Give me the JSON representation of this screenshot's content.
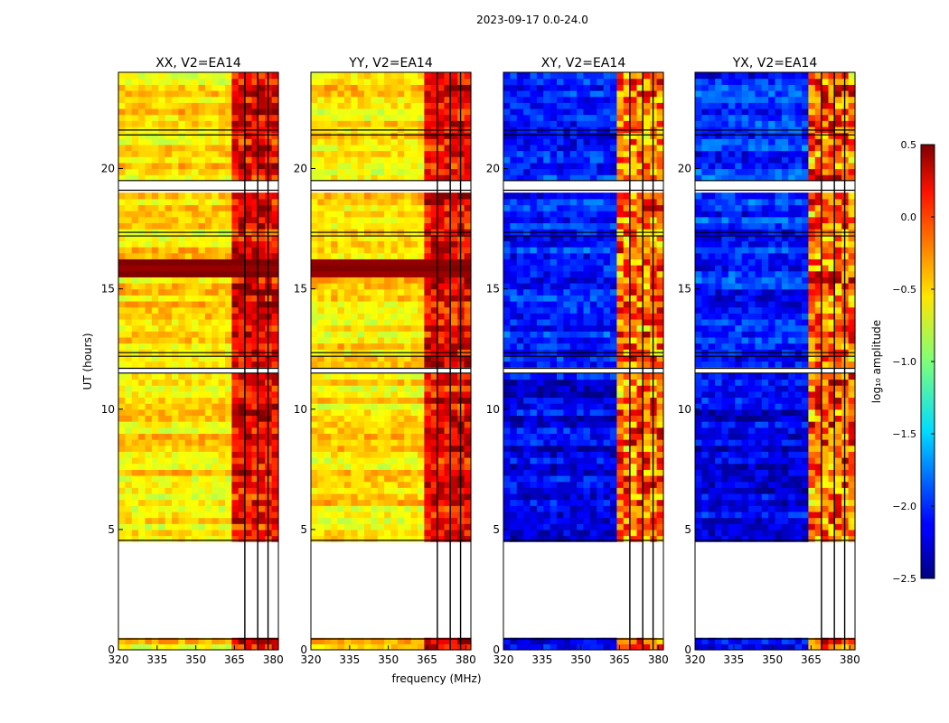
{
  "figure_title": "2023-09-17 0.0-24.0",
  "chart_data": [
    {
      "type": "heatmap",
      "title": "XX, V2=EA14",
      "pol": "XX",
      "xlabel": "",
      "ylabel": "UT (hours)",
      "xlim": [
        320,
        382
      ],
      "ylim": [
        0,
        24
      ],
      "xticks": [
        "320",
        "335",
        "350",
        "365",
        "380"
      ],
      "yticks": [
        "0",
        "5",
        "10",
        "15",
        "20"
      ]
    },
    {
      "type": "heatmap",
      "title": "YY, V2=EA14",
      "pol": "YY",
      "xlabel": "frequency (MHz)",
      "ylabel": "",
      "xlim": [
        320,
        382
      ],
      "ylim": [
        0,
        24
      ],
      "xticks": [
        "320",
        "335",
        "350",
        "365",
        "380"
      ],
      "yticks": [
        "0",
        "5",
        "10",
        "15",
        "20"
      ]
    },
    {
      "type": "heatmap",
      "title": "XY, V2=EA14",
      "pol": "XY",
      "xlabel": "",
      "ylabel": "",
      "xlim": [
        320,
        382
      ],
      "ylim": [
        0,
        24
      ],
      "xticks": [
        "320",
        "335",
        "350",
        "365",
        "380"
      ],
      "yticks": [
        "0",
        "5",
        "10",
        "15",
        "20"
      ]
    },
    {
      "type": "heatmap",
      "title": "YX, V2=EA14",
      "pol": "YX",
      "xlabel": "",
      "ylabel": "",
      "xlim": [
        320,
        382
      ],
      "ylim": [
        0,
        24
      ],
      "xticks": [
        "320",
        "335",
        "350",
        "365",
        "380"
      ],
      "yticks": [
        "0",
        "5",
        "10",
        "15",
        "20"
      ]
    }
  ],
  "colorbar": {
    "label": "log₁₀ amplitude",
    "range": [
      -2.5,
      0.5
    ],
    "ticks": [
      "0.5",
      "0.0",
      "−0.5",
      "−1.0",
      "−1.5",
      "−2.0",
      "−2.5"
    ],
    "colormap": "jet"
  },
  "observations": {
    "no_data_ut_range": [
      0.45,
      4.55
    ],
    "flagged_ut_bands": [
      [
        21.4,
        21.6
      ],
      [
        19.1,
        19.5
      ],
      [
        17.2,
        17.35
      ],
      [
        12.2,
        12.35
      ],
      [
        11.5,
        11.7
      ]
    ],
    "bright_band_mhz": [
      364,
      381
    ]
  },
  "colors": {
    "frame": "#000000",
    "background": "#ffffff",
    "flag_line": "#000000"
  }
}
